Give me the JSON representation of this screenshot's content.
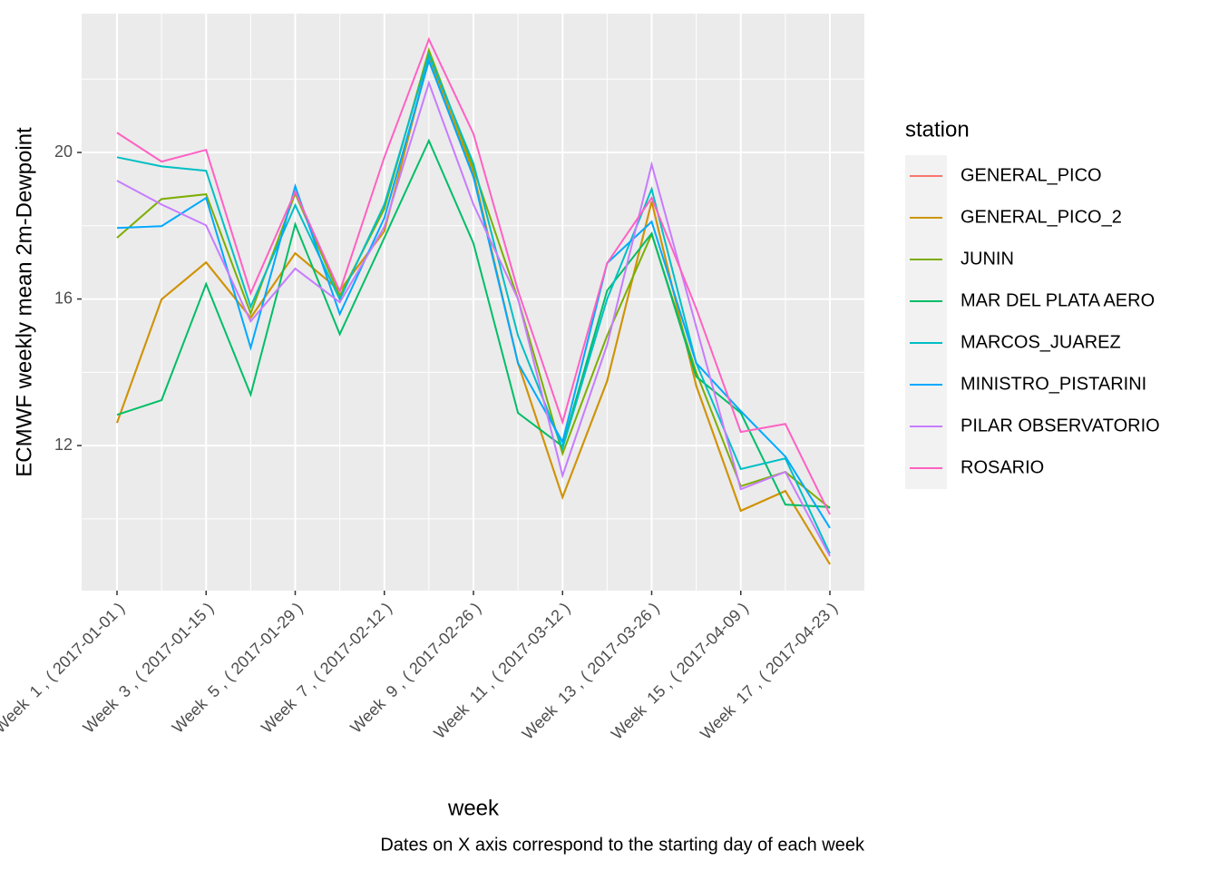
{
  "chart_data": {
    "type": "line",
    "y_label": "ECMWF weekly mean 2m-Dewpoint",
    "x_label": "week",
    "caption": "Dates on X axis correspond to the starting day of each week",
    "legend_title": "station",
    "legend_position": "right",
    "grid": true,
    "categories": [
      "Week  1 , ( 2017-01-01 )",
      null,
      "Week  3 , ( 2017-01-15 )",
      null,
      "Week  5 , ( 2017-01-29 )",
      null,
      "Week  7 , ( 2017-02-12 )",
      null,
      "Week  9 , ( 2017-02-26 )",
      null,
      "Week  11 , ( 2017-03-12 )",
      null,
      "Week  13 , ( 2017-03-26 )",
      null,
      "Week  15 , ( 2017-04-09 )",
      null,
      "Week  17 , ( 2017-04-23 )"
    ],
    "ylim": [
      8.04,
      23.79
    ],
    "yticks": [
      12,
      16,
      20
    ],
    "series": [
      {
        "name": "GENERAL_PICO",
        "color": "#F8766D",
        "values": [
          12.62,
          15.99,
          17.0,
          15.49,
          17.25,
          16.23,
          17.85,
          22.6,
          19.45,
          14.25,
          10.59,
          13.76,
          18.66,
          13.63,
          10.22,
          10.76,
          8.76
        ]
      },
      {
        "name": "GENERAL_PICO_2",
        "color": "#CD9600",
        "values": [
          12.62,
          15.99,
          17.0,
          15.49,
          17.25,
          16.23,
          17.85,
          22.6,
          19.45,
          14.25,
          10.59,
          13.76,
          18.66,
          13.63,
          10.22,
          10.76,
          8.76
        ]
      },
      {
        "name": "JUNIN",
        "color": "#7CAE00",
        "values": [
          17.67,
          18.73,
          18.86,
          15.61,
          18.88,
          16.08,
          18.46,
          22.79,
          19.57,
          16.0,
          11.78,
          15.0,
          17.77,
          14.0,
          10.89,
          11.28,
          10.29
        ]
      },
      {
        "name": "MAR DEL PLATA AERO",
        "color": "#00BE67",
        "values": [
          12.84,
          13.24,
          16.41,
          13.39,
          18.04,
          15.04,
          17.67,
          20.32,
          17.52,
          12.89,
          11.98,
          16.23,
          17.79,
          13.88,
          12.89,
          10.39,
          10.32
        ]
      },
      {
        "name": "MARCOS_JUAREZ",
        "color": "#00BFC4",
        "values": [
          19.87,
          19.62,
          19.5,
          15.79,
          18.56,
          15.99,
          18.58,
          22.67,
          19.7,
          15.0,
          11.93,
          16.0,
          19.0,
          14.25,
          11.36,
          11.65,
          9.05
        ]
      },
      {
        "name": "MINISTRO_PISTARINI",
        "color": "#00A9FF",
        "values": [
          17.94,
          17.99,
          18.76,
          14.67,
          19.08,
          15.59,
          18.21,
          22.5,
          19.33,
          14.25,
          12.1,
          16.98,
          18.11,
          14.25,
          12.94,
          11.7,
          9.75
        ]
      },
      {
        "name": "PILAR OBSERVATORIO",
        "color": "#C77CFF",
        "values": [
          19.23,
          18.58,
          18.01,
          15.39,
          16.83,
          15.91,
          17.97,
          21.9,
          18.58,
          16.0,
          11.18,
          14.75,
          19.67,
          15.24,
          10.81,
          11.28,
          8.98
        ]
      },
      {
        "name": "ROSARIO",
        "color": "#FF61C3",
        "values": [
          20.54,
          19.75,
          20.07,
          16.16,
          18.93,
          16.21,
          19.87,
          23.09,
          20.51,
          16.23,
          12.64,
          16.98,
          18.76,
          15.74,
          12.37,
          12.59,
          10.12
        ]
      }
    ]
  }
}
